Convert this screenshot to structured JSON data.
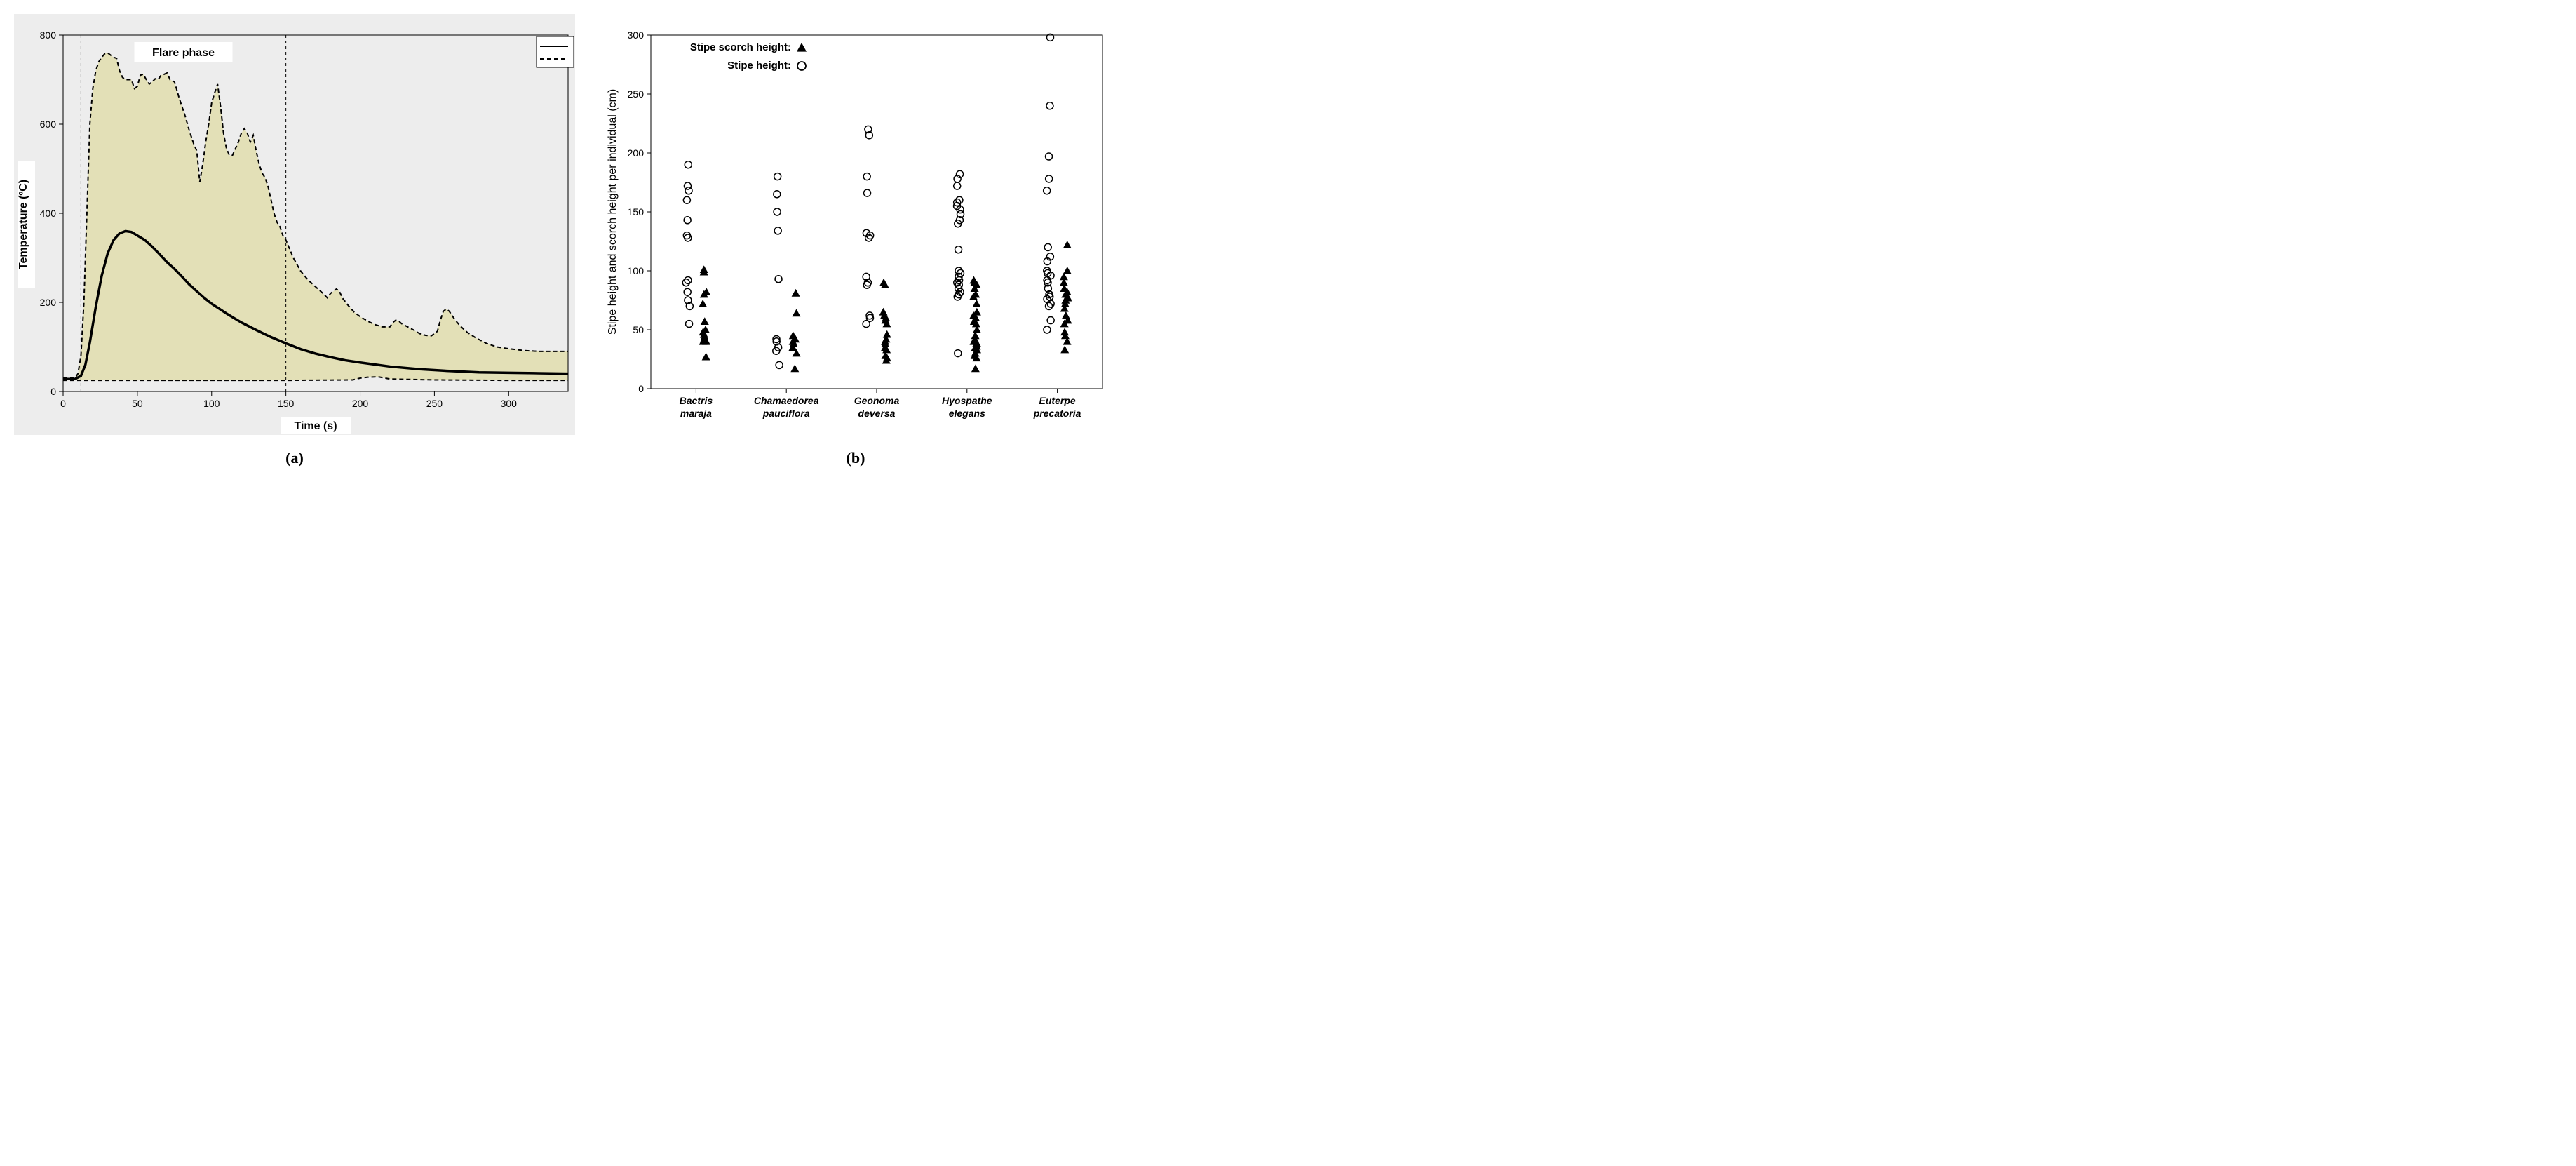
{
  "panelA": {
    "type": "line-area",
    "background_color": "#ededed",
    "plot_background": "#ededed",
    "area_fill": "#e3e0b7",
    "area_stroke": "#000000",
    "area_stroke_dash": "6,4",
    "mean_line_color": "#000000",
    "mean_line_width": 3.5,
    "grid_color": "#000000",
    "xlabel": "Time (s)",
    "ylabel": "Temperature (ºC)",
    "annotation": "Flare phase",
    "sublabel": "(a)",
    "xlim": [
      0,
      340
    ],
    "ylim": [
      0,
      800
    ],
    "xticks": [
      0,
      50,
      100,
      150,
      200,
      250,
      300
    ],
    "yticks": [
      0,
      200,
      400,
      600,
      800
    ],
    "flare_lines_x": [
      12,
      150
    ],
    "label_fontsize": 16,
    "tick_fontsize": 14,
    "upper": [
      [
        0,
        30
      ],
      [
        8,
        30
      ],
      [
        10,
        40
      ],
      [
        12,
        80
      ],
      [
        14,
        200
      ],
      [
        16,
        400
      ],
      [
        18,
        600
      ],
      [
        20,
        680
      ],
      [
        22,
        720
      ],
      [
        24,
        740
      ],
      [
        26,
        750
      ],
      [
        28,
        758
      ],
      [
        30,
        760
      ],
      [
        32,
        755
      ],
      [
        34,
        750
      ],
      [
        36,
        748
      ],
      [
        38,
        720
      ],
      [
        40,
        705
      ],
      [
        42,
        700
      ],
      [
        44,
        700
      ],
      [
        46,
        700
      ],
      [
        48,
        680
      ],
      [
        50,
        685
      ],
      [
        52,
        710
      ],
      [
        54,
        712
      ],
      [
        56,
        700
      ],
      [
        58,
        690
      ],
      [
        60,
        695
      ],
      [
        62,
        702
      ],
      [
        64,
        700
      ],
      [
        66,
        710
      ],
      [
        68,
        712
      ],
      [
        70,
        715
      ],
      [
        72,
        700
      ],
      [
        75,
        695
      ],
      [
        78,
        660
      ],
      [
        82,
        620
      ],
      [
        85,
        585
      ],
      [
        88,
        555
      ],
      [
        90,
        540
      ],
      [
        92,
        470
      ],
      [
        94,
        510
      ],
      [
        96,
        560
      ],
      [
        98,
        600
      ],
      [
        100,
        648
      ],
      [
        102,
        670
      ],
      [
        104,
        690
      ],
      [
        106,
        640
      ],
      [
        108,
        580
      ],
      [
        110,
        545
      ],
      [
        112,
        530
      ],
      [
        114,
        530
      ],
      [
        116,
        545
      ],
      [
        118,
        560
      ],
      [
        120,
        580
      ],
      [
        122,
        590
      ],
      [
        124,
        580
      ],
      [
        126,
        560
      ],
      [
        128,
        575
      ],
      [
        130,
        540
      ],
      [
        132,
        510
      ],
      [
        134,
        490
      ],
      [
        136,
        480
      ],
      [
        138,
        460
      ],
      [
        140,
        430
      ],
      [
        142,
        400
      ],
      [
        144,
        380
      ],
      [
        146,
        370
      ],
      [
        148,
        350
      ],
      [
        150,
        340
      ],
      [
        155,
        300
      ],
      [
        160,
        270
      ],
      [
        165,
        250
      ],
      [
        170,
        235
      ],
      [
        175,
        220
      ],
      [
        178,
        210
      ],
      [
        180,
        220
      ],
      [
        182,
        225
      ],
      [
        184,
        230
      ],
      [
        186,
        225
      ],
      [
        188,
        210
      ],
      [
        192,
        193
      ],
      [
        196,
        178
      ],
      [
        200,
        168
      ],
      [
        205,
        158
      ],
      [
        210,
        150
      ],
      [
        215,
        145
      ],
      [
        220,
        145
      ],
      [
        222,
        155
      ],
      [
        224,
        160
      ],
      [
        226,
        158
      ],
      [
        228,
        152
      ],
      [
        232,
        145
      ],
      [
        236,
        138
      ],
      [
        240,
        130
      ],
      [
        244,
        126
      ],
      [
        248,
        125
      ],
      [
        252,
        135
      ],
      [
        254,
        160
      ],
      [
        256,
        180
      ],
      [
        258,
        185
      ],
      [
        260,
        180
      ],
      [
        264,
        160
      ],
      [
        268,
        145
      ],
      [
        272,
        133
      ],
      [
        278,
        120
      ],
      [
        285,
        108
      ],
      [
        292,
        100
      ],
      [
        300,
        96
      ],
      [
        310,
        92
      ],
      [
        320,
        90
      ],
      [
        330,
        90
      ],
      [
        340,
        90
      ]
    ],
    "lower": [
      [
        0,
        25
      ],
      [
        10,
        25
      ],
      [
        20,
        25
      ],
      [
        40,
        25
      ],
      [
        60,
        25
      ],
      [
        100,
        25
      ],
      [
        150,
        25
      ],
      [
        195,
        26
      ],
      [
        200,
        30
      ],
      [
        205,
        32
      ],
      [
        212,
        33
      ],
      [
        220,
        28
      ],
      [
        250,
        26
      ],
      [
        300,
        25
      ],
      [
        340,
        25
      ]
    ],
    "mean": [
      [
        0,
        28
      ],
      [
        8,
        28
      ],
      [
        12,
        35
      ],
      [
        15,
        60
      ],
      [
        18,
        110
      ],
      [
        22,
        190
      ],
      [
        26,
        260
      ],
      [
        30,
        310
      ],
      [
        34,
        340
      ],
      [
        38,
        355
      ],
      [
        42,
        360
      ],
      [
        46,
        358
      ],
      [
        50,
        350
      ],
      [
        55,
        340
      ],
      [
        60,
        325
      ],
      [
        65,
        308
      ],
      [
        70,
        290
      ],
      [
        75,
        275
      ],
      [
        80,
        258
      ],
      [
        85,
        240
      ],
      [
        90,
        225
      ],
      [
        95,
        210
      ],
      [
        100,
        197
      ],
      [
        110,
        175
      ],
      [
        120,
        155
      ],
      [
        130,
        138
      ],
      [
        140,
        122
      ],
      [
        150,
        108
      ],
      [
        160,
        95
      ],
      [
        170,
        85
      ],
      [
        180,
        77
      ],
      [
        190,
        70
      ],
      [
        200,
        65
      ],
      [
        220,
        56
      ],
      [
        240,
        50
      ],
      [
        260,
        46
      ],
      [
        280,
        43
      ],
      [
        300,
        42
      ],
      [
        320,
        41
      ],
      [
        340,
        40
      ]
    ]
  },
  "panelB": {
    "type": "scatter",
    "background_color": "#ffffff",
    "legend_scorch": "Stipe scorch height:",
    "legend_height": "Stipe height:",
    "ylabel": "Stipe height and scorch height per individual (cm)",
    "sublabel": "(b)",
    "ylim": [
      0,
      300
    ],
    "yticks": [
      0,
      50,
      100,
      150,
      200,
      250,
      300
    ],
    "marker_circle_stroke": "#000000",
    "marker_circle_fill": "none",
    "marker_triangle_fill": "#000000",
    "marker_size": 5,
    "circle_offset": -12,
    "triangle_offset": 12,
    "label_fontsize": 16,
    "tick_fontsize": 14,
    "species": [
      {
        "name_line1": "Bactris",
        "name_line2": "maraja"
      },
      {
        "name_line1": "Chamaedorea",
        "name_line2": "pauciflora"
      },
      {
        "name_line1": "Geonoma",
        "name_line2": "deversa"
      },
      {
        "name_line1": "Hyospathe",
        "name_line2": "elegans"
      },
      {
        "name_line1": "Euterpe",
        "name_line2": "precatoria"
      }
    ],
    "stipe_height": {
      "0": [
        55,
        70,
        75,
        82,
        90,
        92,
        128,
        130,
        143,
        160,
        168,
        172,
        190
      ],
      "1": [
        20,
        32,
        35,
        40,
        42,
        93,
        134,
        150,
        165,
        180
      ],
      "2": [
        55,
        60,
        62,
        88,
        90,
        95,
        128,
        130,
        132,
        166,
        180,
        215,
        220
      ],
      "3": [
        30,
        78,
        80,
        82,
        85,
        88,
        90,
        92,
        95,
        98,
        100,
        118,
        140,
        143,
        148,
        152,
        155,
        158,
        160,
        172,
        178,
        182
      ],
      "4": [
        50,
        58,
        70,
        72,
        76,
        78,
        80,
        85,
        90,
        92,
        96,
        98,
        100,
        108,
        112,
        120,
        168,
        178,
        197,
        240,
        298
      ]
    },
    "scorch_height": {
      "0": [
        27,
        40,
        40,
        42,
        44,
        46,
        48,
        50,
        57,
        72,
        80,
        82,
        99,
        101
      ],
      "1": [
        17,
        30,
        35,
        38,
        40,
        42,
        45,
        64,
        81
      ],
      "2": [
        24,
        26,
        28,
        33,
        35,
        38,
        40,
        42,
        46,
        55,
        58,
        60,
        62,
        65,
        88,
        90
      ],
      "3": [
        17,
        26,
        28,
        30,
        33,
        35,
        36,
        38,
        38,
        40,
        42,
        45,
        50,
        55,
        57,
        60,
        62,
        65,
        72,
        78,
        80,
        85,
        88,
        90,
        92
      ],
      "4": [
        33,
        40,
        45,
        48,
        55,
        58,
        62,
        68,
        72,
        75,
        77,
        78,
        80,
        82,
        85,
        90,
        95,
        100,
        122
      ]
    }
  }
}
